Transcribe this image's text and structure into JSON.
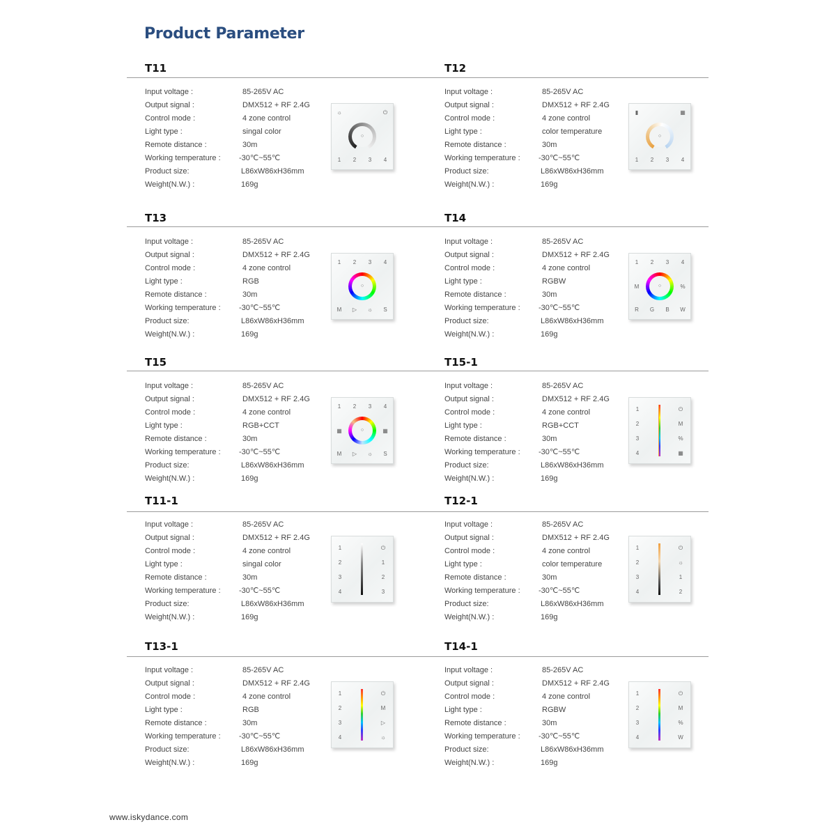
{
  "title": "Product Parameter",
  "footer": "www.iskydance.com",
  "spec_labels": [
    "Input voltage :",
    "Output signal :",
    "Control mode :",
    "Light type :",
    "Remote distance :",
    "Working temperature :",
    "Product size:",
    "Weight(N.W.) :"
  ],
  "colors": {
    "title": "#2a4d7f",
    "rule": "#9a9a9a"
  },
  "products": [
    {
      "name": "T11",
      "values": [
        "85-265V AC",
        "DMX512 + RF 2.4G",
        "4 zone control",
        "singal color",
        "30m",
        "-30℃~55℃",
        "L86xW86xH36mm",
        "169g"
      ],
      "panel": {
        "style": "ring-gray",
        "top": [
          "☼",
          "⏻"
        ],
        "bottom": [
          "1",
          "2",
          "3",
          "4"
        ],
        "sides": []
      }
    },
    {
      "name": "T12",
      "values": [
        "85-265V AC",
        "DMX512 + RF 2.4G",
        "4 zone control",
        "color temperature",
        "30m",
        "-30℃~55℃",
        "L86xW86xH36mm",
        "169g"
      ],
      "panel": {
        "style": "ring-cct",
        "top": [
          "▮",
          "▦"
        ],
        "bottom": [
          "1",
          "2",
          "3",
          "4"
        ],
        "sides": []
      }
    },
    {
      "name": "T13",
      "values": [
        "85-265V AC",
        "DMX512 + RF 2.4G",
        "4 zone control",
        "RGB",
        "30m",
        "-30℃~55℃",
        "L86xW86xH36mm",
        "169g"
      ],
      "panel": {
        "style": "ring-rgb",
        "top": [
          "1",
          "2",
          "3",
          "4"
        ],
        "bottom": [
          "M",
          "▷",
          "☼",
          "S"
        ],
        "sides": []
      }
    },
    {
      "name": "T14",
      "values": [
        "85-265V AC",
        "DMX512 + RF 2.4G",
        "4 zone control",
        "RGBW",
        "30m",
        "-30℃~55℃",
        "L86xW86xH36mm",
        "169g"
      ],
      "panel": {
        "style": "ring-rgb",
        "top": [
          "1",
          "2",
          "3",
          "4"
        ],
        "bottom": [
          "R",
          "G",
          "B",
          "W"
        ],
        "sides": [
          "M",
          "%"
        ]
      }
    },
    {
      "name": "T15",
      "values": [
        "85-265V AC",
        "DMX512 + RF 2.4G",
        "4 zone control",
        "RGB+CCT",
        "30m",
        "-30℃~55℃",
        "L86xW86xH36mm",
        "169g"
      ],
      "panel": {
        "style": "ring-rgbcct",
        "top": [
          "1",
          "2",
          "3",
          "4"
        ],
        "bottom": [
          "M",
          "▷",
          "☼",
          "S"
        ],
        "sides": [
          "▦",
          "▦"
        ]
      }
    },
    {
      "name": "T15-1",
      "values": [
        "85-265V AC",
        "DMX512 + RF 2.4G",
        "4 zone control",
        "RGB+CCT",
        "30m",
        "-30℃~55℃",
        "L86xW86xH36mm",
        "169g"
      ],
      "panel": {
        "style": "bar-rgbcct",
        "left": [
          "1",
          "2",
          "3",
          "4"
        ],
        "right": [
          "⏻",
          "M",
          "%",
          "▦"
        ]
      }
    },
    {
      "name": "T11-1",
      "values": [
        "85-265V AC",
        "DMX512 + RF 2.4G",
        "4 zone control",
        "singal color",
        "30m",
        "-30℃~55℃",
        "L86xW86xH36mm",
        "169g"
      ],
      "panel": {
        "style": "bar-gray",
        "left": [
          "1",
          "2",
          "3",
          "4"
        ],
        "right": [
          "⏻",
          "1",
          "2",
          "3"
        ]
      }
    },
    {
      "name": "T12-1",
      "values": [
        "85-265V AC",
        "DMX512 + RF 2.4G",
        "4 zone control",
        "color temperature",
        "30m",
        "-30℃~55℃",
        "L86xW86xH36mm",
        "169g"
      ],
      "panel": {
        "style": "bar-cct",
        "left": [
          "1",
          "2",
          "3",
          "4"
        ],
        "right": [
          "⏻",
          "☼",
          "1",
          "2"
        ]
      }
    },
    {
      "name": "T13-1",
      "values": [
        "85-265V AC",
        "DMX512 + RF 2.4G",
        "4 zone control",
        "RGB",
        "30m",
        "-30℃~55℃",
        "L86xW86xH36mm",
        "169g"
      ],
      "panel": {
        "style": "bar-rgb",
        "left": [
          "1",
          "2",
          "3",
          "4"
        ],
        "right": [
          "⏻",
          "M",
          "▷",
          "☼"
        ]
      }
    },
    {
      "name": "T14-1",
      "values": [
        "85-265V AC",
        "DMX512 + RF 2.4G",
        "4 zone control",
        "RGBW",
        "30m",
        "-30℃~55℃",
        "L86xW86xH36mm",
        "169g"
      ],
      "panel": {
        "style": "bar-rgb",
        "left": [
          "1",
          "2",
          "3",
          "4"
        ],
        "right": [
          "⏻",
          "M",
          "%",
          "W"
        ]
      }
    }
  ]
}
